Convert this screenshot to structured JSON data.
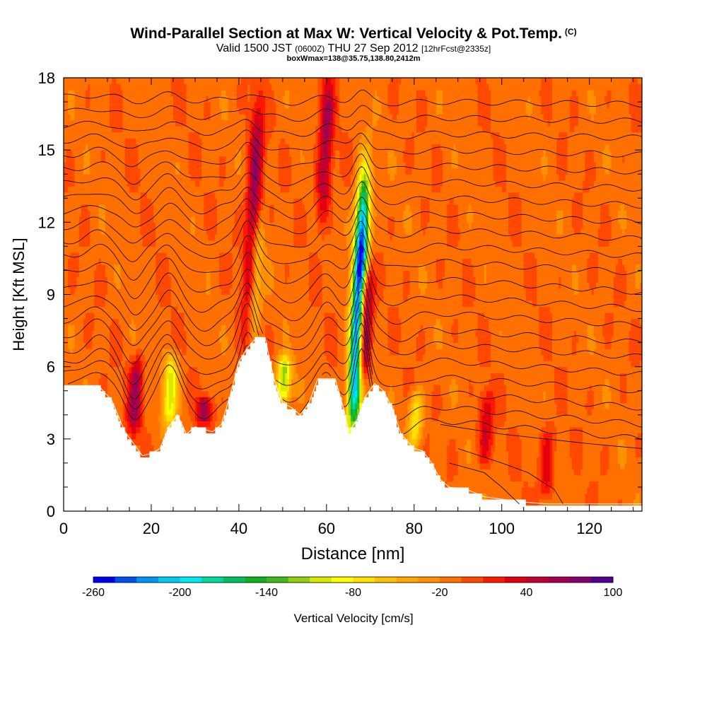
{
  "header": {
    "title": "Wind-Parallel Section at Max W: Vertical Velocity & Pot.Temp.",
    "title_tag": "(C)",
    "valid_prefix": "Valid 1500 JST",
    "valid_utc": "(0600Z)",
    "valid_date": "THU 27 Sep 2012",
    "forecast": "[12hrFcst@2335z]",
    "box": "boxWmax=138@35.75,138.80,2412m"
  },
  "chart_data": {
    "type": "heatmap",
    "title": "Wind-Parallel Section at Max W: Vertical Velocity & Pot.Temp.",
    "xlabel": "Distance [nm]",
    "ylabel": "Height [Kft MSL]",
    "xlim": [
      0,
      132
    ],
    "ylim": [
      0,
      18
    ],
    "xticks": [
      0,
      20,
      40,
      60,
      80,
      100,
      120
    ],
    "yticks": [
      0,
      3,
      6,
      9,
      12,
      15,
      18
    ],
    "grid": false,
    "background_value": -10,
    "colorbar": {
      "label": "Vertical Velocity [cm/s]",
      "tick_values": [
        -260,
        -200,
        -140,
        -80,
        -20,
        40,
        100
      ],
      "colors": [
        "#0000f0",
        "#0050f0",
        "#0094f0",
        "#00c8f0",
        "#00e8f0",
        "#00d8a0",
        "#00c060",
        "#10b020",
        "#40b820",
        "#90d010",
        "#d8ea00",
        "#ffff00",
        "#ffe000",
        "#ffc000",
        "#ffa800",
        "#ff9000",
        "#ff7000",
        "#ff4800",
        "#ff1800",
        "#e00010",
        "#c00030",
        "#a00050",
        "#800070",
        "#500090"
      ]
    },
    "terrain": [
      [
        0,
        5.2
      ],
      [
        8,
        5.2
      ],
      [
        11,
        4.6
      ],
      [
        14,
        3.3
      ],
      [
        18,
        2.3
      ],
      [
        20,
        2.4
      ],
      [
        22,
        2.6
      ],
      [
        24,
        3.5
      ],
      [
        26,
        4.0
      ],
      [
        28,
        3.2
      ],
      [
        30,
        3.5
      ],
      [
        32,
        3.4
      ],
      [
        34,
        3.3
      ],
      [
        36,
        3.6
      ],
      [
        38,
        4.8
      ],
      [
        40,
        6.2
      ],
      [
        42,
        6.8
      ],
      [
        44,
        7.2
      ],
      [
        46,
        7.2
      ],
      [
        48,
        5.5
      ],
      [
        50,
        4.5
      ],
      [
        52,
        4.3
      ],
      [
        54,
        4.0
      ],
      [
        56,
        4.5
      ],
      [
        58,
        5.5
      ],
      [
        60,
        5.5
      ],
      [
        62,
        5.5
      ],
      [
        64,
        4.2
      ],
      [
        65,
        3.3
      ],
      [
        67,
        3.8
      ],
      [
        69,
        4.8
      ],
      [
        71,
        5.3
      ],
      [
        73,
        5.0
      ],
      [
        75,
        4.3
      ],
      [
        77,
        3.2
      ],
      [
        80,
        2.6
      ],
      [
        82,
        2.5
      ],
      [
        84,
        2.0
      ],
      [
        86,
        1.3
      ],
      [
        88,
        1.0
      ],
      [
        92,
        0.9
      ],
      [
        96,
        0.6
      ],
      [
        100,
        0.5
      ],
      [
        104,
        0.4
      ],
      [
        110,
        0.3
      ],
      [
        120,
        0.3
      ],
      [
        132,
        0.3
      ]
    ],
    "updrafts": [
      {
        "x": 16,
        "bottom": 3.2,
        "top": 6.4,
        "peak": 70
      },
      {
        "x": 32,
        "bottom": 3.6,
        "top": 4.8,
        "peak": 70
      },
      {
        "x": 42,
        "bottom": 7.2,
        "top": 17.0,
        "peak": 80
      },
      {
        "x": 59,
        "bottom": 12.0,
        "top": 18.0,
        "peak": 70
      },
      {
        "x": 68,
        "bottom": 5.5,
        "top": 10.0,
        "peak": 138
      },
      {
        "x": 96,
        "bottom": 2.0,
        "top": 5.0,
        "peak": 50
      },
      {
        "x": 110,
        "bottom": 0.5,
        "top": 3.5,
        "peak": 45
      }
    ],
    "downdrafts": [
      {
        "x": 24,
        "bottom": 3.5,
        "top": 6.5,
        "peak": -90
      },
      {
        "x": 43,
        "bottom": 7.2,
        "top": 12.0,
        "peak": -70
      },
      {
        "x": 50,
        "bottom": 4.5,
        "top": 6.5,
        "peak": -110
      },
      {
        "x": 66,
        "bottom": 3.3,
        "top": 14.0,
        "peak": -260
      },
      {
        "x": 80,
        "bottom": 2.6,
        "top": 5.0,
        "peak": -70
      }
    ],
    "contours": {
      "series": [
        {
          "name": "",
          "y0": 5.2,
          "y1": 3.0
        },
        {
          "name": "",
          "y0": 5.7,
          "y1": 3.6
        },
        {
          "name": "",
          "y0": 6.1,
          "y1": 4.3
        },
        {
          "name": "",
          "y0": 6.6,
          "y1": 5.0
        },
        {
          "name": "",
          "y0": 7.3,
          "y1": 5.7
        },
        {
          "name": "",
          "y0": 7.9,
          "y1": 6.4
        },
        {
          "name": "",
          "y0": 8.5,
          "y1": 7.0
        },
        {
          "name": "",
          "y0": 9.2,
          "y1": 7.7
        },
        {
          "name": "",
          "y0": 9.9,
          "y1": 8.4
        },
        {
          "name": "",
          "y0": 10.6,
          "y1": 9.1
        },
        {
          "name": "",
          "y0": 11.2,
          "y1": 9.9
        },
        {
          "name": "",
          "y0": 11.8,
          "y1": 10.6
        },
        {
          "name": "",
          "y0": 12.4,
          "y1": 11.3
        },
        {
          "name": "",
          "y0": 13.0,
          "y1": 12.0
        },
        {
          "name": "",
          "y0": 13.6,
          "y1": 12.7
        },
        {
          "name": "",
          "y0": 14.2,
          "y1": 13.4
        },
        {
          "name": "",
          "y0": 14.8,
          "y1": 14.1
        },
        {
          "name": "",
          "y0": 15.4,
          "y1": 14.8
        },
        {
          "name": "",
          "y0": 16.0,
          "y1": 15.5
        },
        {
          "name": "",
          "y0": 16.6,
          "y1": 16.2
        },
        {
          "name": "",
          "y0": 17.2,
          "y1": 16.9
        }
      ],
      "low_level": [
        {
          "name": "",
          "points": [
            [
              86,
              3.6
            ],
            [
              100,
              3.2
            ],
            [
              110,
              3.0
            ],
            [
              120,
              2.8
            ],
            [
              132,
              2.6
            ]
          ]
        },
        {
          "name": "",
          "points": [
            [
              90,
              2.6
            ],
            [
              100,
              2.0
            ],
            [
              106,
              1.6
            ],
            [
              112,
              0.9
            ],
            [
              114,
              0.3
            ]
          ]
        },
        {
          "name": "",
          "points": [
            [
              88,
              2.0
            ],
            [
              96,
              1.6
            ],
            [
              100,
              1.0
            ],
            [
              104,
              0.3
            ]
          ]
        }
      ],
      "waves": [
        {
          "x": 8,
          "amp": 0.8,
          "w": 4
        },
        {
          "x": 16,
          "amp": -1.2,
          "w": 3
        },
        {
          "x": 24,
          "amp": 1.2,
          "w": 3
        },
        {
          "x": 32,
          "amp": -0.7,
          "w": 4
        },
        {
          "x": 42,
          "amp": 2.0,
          "w": 2.5
        },
        {
          "x": 52,
          "amp": -0.8,
          "w": 5
        },
        {
          "x": 60,
          "amp": 1.0,
          "w": 3
        },
        {
          "x": 68,
          "amp": 2.6,
          "w": 2.2
        },
        {
          "x": 76,
          "amp": -0.6,
          "w": 5
        }
      ]
    }
  }
}
